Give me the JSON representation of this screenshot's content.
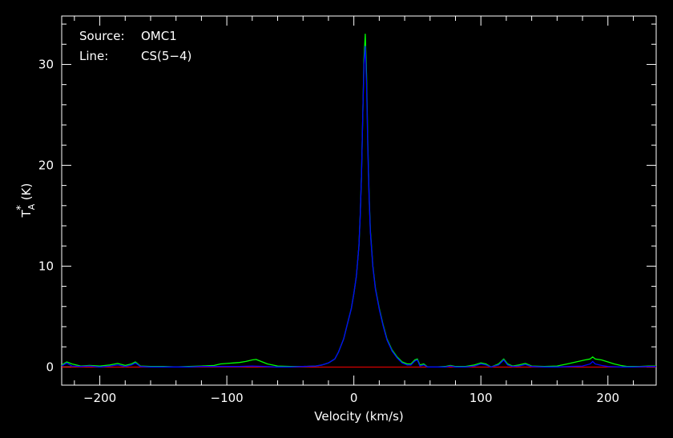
{
  "chart_data": {
    "type": "line",
    "xlabel": "Velocity (km/s)",
    "ylabel_base": "T",
    "ylabel_sub": "A",
    "ylabel_sup": "*",
    "ylabel_unit": "(K)",
    "xlim": [
      -230,
      238
    ],
    "ylim": [
      -1.8,
      34.8
    ],
    "xticks": [
      -200,
      -100,
      0,
      100,
      200
    ],
    "xtick_labels": [
      "−200",
      "−100",
      "0",
      "100",
      "200"
    ],
    "yticks": [
      0,
      10,
      20,
      30
    ],
    "ytick_labels": [
      "0",
      "10",
      "20",
      "30"
    ],
    "grid": false,
    "annotations": [
      {
        "key": "Source:",
        "value": "OMC1"
      },
      {
        "key": "Line:",
        "value": "CS(5−4)"
      }
    ],
    "baseline": {
      "y": 0,
      "color": "#ff0000"
    },
    "series": [
      {
        "color": "#00ff00",
        "points": [
          [
            -230,
            0.2
          ],
          [
            -226,
            0.5
          ],
          [
            -222,
            0.3
          ],
          [
            -215,
            0.1
          ],
          [
            -208,
            0.15
          ],
          [
            -200,
            0.1
          ],
          [
            -192,
            0.2
          ],
          [
            -186,
            0.35
          ],
          [
            -180,
            0.15
          ],
          [
            -175,
            0.3
          ],
          [
            -172,
            0.5
          ],
          [
            -168,
            0.1
          ],
          [
            -160,
            0.05
          ],
          [
            -150,
            0.05
          ],
          [
            -140,
            0.0
          ],
          [
            -130,
            0.05
          ],
          [
            -120,
            0.1
          ],
          [
            -110,
            0.15
          ],
          [
            -105,
            0.3
          ],
          [
            -100,
            0.35
          ],
          [
            -95,
            0.4
          ],
          [
            -90,
            0.45
          ],
          [
            -85,
            0.55
          ],
          [
            -80,
            0.7
          ],
          [
            -77,
            0.75
          ],
          [
            -73,
            0.55
          ],
          [
            -68,
            0.3
          ],
          [
            -60,
            0.1
          ],
          [
            -50,
            0.05
          ],
          [
            -40,
            0.05
          ],
          [
            -30,
            0.1
          ],
          [
            -25,
            0.2
          ],
          [
            -20,
            0.4
          ],
          [
            -15,
            0.8
          ],
          [
            -12,
            1.5
          ],
          [
            -8,
            2.8
          ],
          [
            -5,
            4.3
          ],
          [
            -2,
            5.8
          ],
          [
            0,
            7.3
          ],
          [
            2,
            9.0
          ],
          [
            4,
            12.0
          ],
          [
            5,
            15.0
          ],
          [
            6,
            19.0
          ],
          [
            7,
            25.0
          ],
          [
            8,
            30.5
          ],
          [
            9,
            33.0
          ],
          [
            10,
            29.0
          ],
          [
            11,
            22.0
          ],
          [
            12,
            17.0
          ],
          [
            13,
            13.5
          ],
          [
            15,
            10.0
          ],
          [
            17,
            7.8
          ],
          [
            20,
            5.8
          ],
          [
            23,
            4.2
          ],
          [
            26,
            2.8
          ],
          [
            30,
            1.7
          ],
          [
            34,
            1.0
          ],
          [
            38,
            0.5
          ],
          [
            42,
            0.3
          ],
          [
            45,
            0.3
          ],
          [
            48,
            0.7
          ],
          [
            50,
            0.8
          ],
          [
            52,
            0.2
          ],
          [
            55,
            0.3
          ],
          [
            58,
            0.0
          ],
          [
            65,
            0.0
          ],
          [
            72,
            0.05
          ],
          [
            76,
            0.15
          ],
          [
            80,
            0.05
          ],
          [
            88,
            0.05
          ],
          [
            95,
            0.2
          ],
          [
            100,
            0.4
          ],
          [
            104,
            0.3
          ],
          [
            108,
            0.0
          ],
          [
            114,
            0.3
          ],
          [
            118,
            0.8
          ],
          [
            121,
            0.3
          ],
          [
            125,
            0.1
          ],
          [
            130,
            0.2
          ],
          [
            135,
            0.35
          ],
          [
            140,
            0.1
          ],
          [
            150,
            0.05
          ],
          [
            160,
            0.1
          ],
          [
            168,
            0.3
          ],
          [
            175,
            0.5
          ],
          [
            182,
            0.7
          ],
          [
            186,
            0.8
          ],
          [
            188,
            1.0
          ],
          [
            190,
            0.8
          ],
          [
            195,
            0.7
          ],
          [
            200,
            0.5
          ],
          [
            205,
            0.3
          ],
          [
            210,
            0.15
          ],
          [
            215,
            0.05
          ],
          [
            225,
            0.05
          ],
          [
            232,
            0.1
          ],
          [
            238,
            0.1
          ]
        ]
      },
      {
        "color": "#0000ff",
        "points": [
          [
            -230,
            0.1
          ],
          [
            -226,
            0.4
          ],
          [
            -222,
            0.1
          ],
          [
            -215,
            0.05
          ],
          [
            -208,
            0.1
          ],
          [
            -200,
            0.0
          ],
          [
            -192,
            0.1
          ],
          [
            -186,
            0.2
          ],
          [
            -180,
            0.05
          ],
          [
            -175,
            0.2
          ],
          [
            -172,
            0.4
          ],
          [
            -168,
            0.05
          ],
          [
            -160,
            0.0
          ],
          [
            -150,
            0.0
          ],
          [
            -140,
            0.0
          ],
          [
            -130,
            0.0
          ],
          [
            -120,
            0.05
          ],
          [
            -110,
            0.05
          ],
          [
            -100,
            0.05
          ],
          [
            -90,
            0.05
          ],
          [
            -80,
            0.1
          ],
          [
            -70,
            0.05
          ],
          [
            -60,
            0.0
          ],
          [
            -50,
            0.0
          ],
          [
            -40,
            0.05
          ],
          [
            -30,
            0.1
          ],
          [
            -25,
            0.2
          ],
          [
            -20,
            0.4
          ],
          [
            -15,
            0.8
          ],
          [
            -12,
            1.5
          ],
          [
            -8,
            2.8
          ],
          [
            -5,
            4.3
          ],
          [
            -2,
            5.8
          ],
          [
            0,
            7.3
          ],
          [
            2,
            9.0
          ],
          [
            4,
            12.0
          ],
          [
            5,
            15.0
          ],
          [
            6,
            19.0
          ],
          [
            7,
            25.0
          ],
          [
            8,
            30.0
          ],
          [
            9,
            31.8
          ],
          [
            10,
            28.0
          ],
          [
            11,
            21.5
          ],
          [
            12,
            16.8
          ],
          [
            13,
            13.3
          ],
          [
            15,
            9.9
          ],
          [
            17,
            7.7
          ],
          [
            20,
            5.7
          ],
          [
            23,
            4.1
          ],
          [
            26,
            2.7
          ],
          [
            30,
            1.6
          ],
          [
            34,
            0.9
          ],
          [
            38,
            0.4
          ],
          [
            42,
            0.2
          ],
          [
            45,
            0.2
          ],
          [
            48,
            0.6
          ],
          [
            50,
            0.7
          ],
          [
            52,
            0.1
          ],
          [
            55,
            0.2
          ],
          [
            58,
            0.0
          ],
          [
            65,
            0.0
          ],
          [
            72,
            0.0
          ],
          [
            76,
            0.1
          ],
          [
            80,
            0.0
          ],
          [
            88,
            0.0
          ],
          [
            95,
            0.1
          ],
          [
            100,
            0.3
          ],
          [
            104,
            0.2
          ],
          [
            108,
            0.0
          ],
          [
            114,
            0.2
          ],
          [
            118,
            0.7
          ],
          [
            121,
            0.2
          ],
          [
            125,
            0.05
          ],
          [
            130,
            0.1
          ],
          [
            135,
            0.25
          ],
          [
            140,
            0.05
          ],
          [
            150,
            0.0
          ],
          [
            160,
            0.0
          ],
          [
            170,
            0.05
          ],
          [
            180,
            0.1
          ],
          [
            186,
            0.3
          ],
          [
            188,
            0.55
          ],
          [
            190,
            0.3
          ],
          [
            195,
            0.15
          ],
          [
            200,
            0.05
          ],
          [
            210,
            0.0
          ],
          [
            220,
            0.0
          ],
          [
            232,
            0.05
          ],
          [
            238,
            0.05
          ]
        ]
      }
    ]
  }
}
